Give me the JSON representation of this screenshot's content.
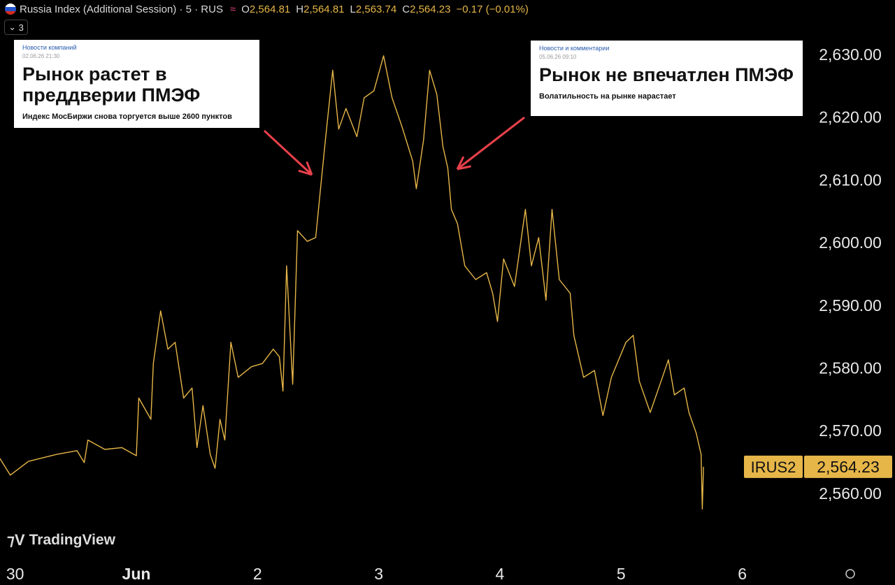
{
  "chart_data": {
    "type": "line",
    "title": "Russia Index (Additional Session) · 5 · RUS",
    "ohlc": [
      {
        "label": "O",
        "value": "2,564.81"
      },
      {
        "label": "H",
        "value": "2,564.81"
      },
      {
        "label": "L",
        "value": "2,563.74"
      },
      {
        "label": "C",
        "value": "2,564.23"
      }
    ],
    "change": "−0.17 (−0.01%)",
    "indicator_count": "3",
    "symbol": "IRUS2",
    "last_price": "2,564.23",
    "watermark": "TradingView",
    "x": [
      -0.13,
      -0.04,
      0.11,
      0.34,
      0.51,
      0.57,
      0.6,
      0.74,
      0.88,
      1.0,
      1.02,
      1.12,
      1.14,
      1.2,
      1.26,
      1.32,
      1.39,
      1.46,
      1.5,
      1.55,
      1.61,
      1.65,
      1.69,
      1.73,
      1.78,
      1.84,
      1.95,
      2.04,
      2.13,
      2.18,
      2.21,
      2.24,
      2.29,
      2.33,
      2.41,
      2.48,
      2.52,
      2.56,
      2.62,
      2.67,
      2.73,
      2.82,
      2.88,
      2.96,
      3.04,
      3.11,
      3.19,
      3.28,
      3.31,
      3.37,
      3.42,
      3.48,
      3.53,
      3.57,
      3.6,
      3.65,
      3.71,
      3.8,
      3.89,
      3.94,
      3.98,
      4.03,
      4.12,
      4.21,
      4.26,
      4.32,
      4.38,
      4.43,
      4.49,
      4.58,
      4.61,
      4.69,
      4.78,
      4.85,
      4.92,
      5.04,
      5.1,
      5.15,
      5.24,
      5.33,
      5.39,
      5.44,
      5.52,
      5.56,
      5.62,
      5.66,
      5.67,
      5.68
    ],
    "series": [
      {
        "name": "IRUS2",
        "color": "#e6b648",
        "values": [
          2565.7,
          2562.9,
          2565.1,
          2566.2,
          2566.8,
          2564.9,
          2568.5,
          2567,
          2567.3,
          2566,
          2575.2,
          2571.8,
          2580.7,
          2589.1,
          2583,
          2584.1,
          2575.2,
          2576.8,
          2567.3,
          2574,
          2566.2,
          2564,
          2571.8,
          2568.5,
          2584.1,
          2578.5,
          2580.2,
          2580.7,
          2583,
          2581.8,
          2576.3,
          2596.3,
          2577.4,
          2601.9,
          2600.2,
          2600.8,
          2608.6,
          2616.4,
          2627.5,
          2618.1,
          2621.4,
          2616.9,
          2623.1,
          2624.2,
          2629.8,
          2623.1,
          2618.6,
          2613,
          2608.6,
          2616.4,
          2627.5,
          2623.6,
          2615.3,
          2611.9,
          2605.3,
          2603,
          2596.3,
          2594.1,
          2595.2,
          2591.9,
          2587.4,
          2597.4,
          2593,
          2605.3,
          2596.3,
          2600.8,
          2590.8,
          2605.3,
          2594.1,
          2591.9,
          2585.2,
          2578.5,
          2579.6,
          2572.4,
          2578.5,
          2584.1,
          2585.2,
          2577.9,
          2572.9,
          2577.9,
          2581.3,
          2575.7,
          2576.8,
          2572.9,
          2569.6,
          2566.2,
          2557.5,
          2564.23
        ]
      }
    ],
    "xlim": [
      -0.125,
      6.51
    ],
    "xticks": [
      {
        "value": 0,
        "label": "30"
      },
      {
        "value": 1,
        "label": "Jun"
      },
      2,
      3,
      4,
      5,
      6
    ],
    "ylim": [
      2549.5,
      2638.7
    ],
    "yticks": [
      {
        "value": 2560,
        "label": "2,560.00"
      },
      {
        "value": 2570,
        "label": "2,570.00"
      },
      {
        "value": 2580,
        "label": "2,580.00"
      },
      {
        "value": 2590,
        "label": "2,590.00"
      },
      {
        "value": 2600,
        "label": "2,600.00"
      },
      {
        "value": 2610,
        "label": "2,610.00"
      },
      {
        "value": 2620,
        "label": "2,620.00"
      },
      {
        "value": 2630,
        "label": "2,630.00"
      }
    ],
    "grid": false,
    "annotations": [
      {
        "source": "Новости компаний",
        "date": "02.06.26 21:30",
        "headline": "Рынок растет в преддверии ПМЭФ",
        "subtitle": "Индекс МосБиржи снова торгуется выше 2600 пунктов"
      },
      {
        "source": "Новости и комментарии",
        "date": "05.06.26 09:10",
        "headline": "Рынок не впечатлен ПМЭФ",
        "subtitle": "Волатильность на рынке нарастает"
      }
    ]
  }
}
